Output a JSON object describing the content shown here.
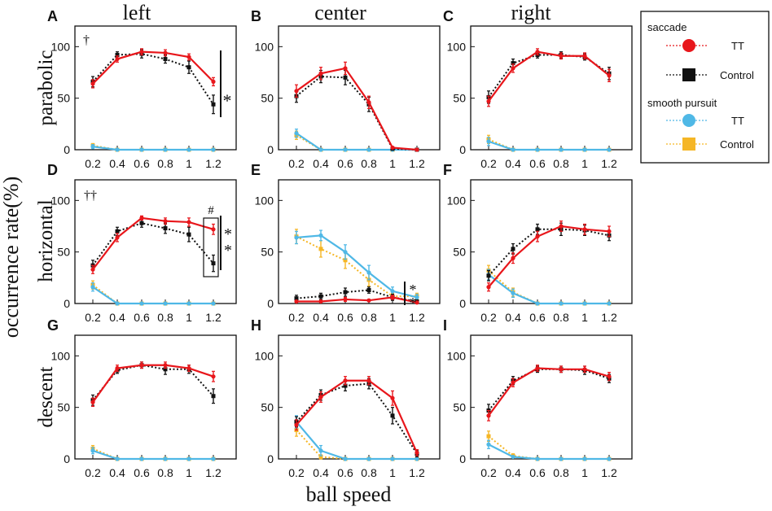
{
  "figure": {
    "ylabel": "occurrence rate(%)",
    "xlabel": "ball speed",
    "col_titles": [
      "left",
      "center",
      "right"
    ],
    "row_titles": [
      "parabolic",
      "horizontal",
      "descent"
    ]
  },
  "legend": {
    "saccade_title": "saccade",
    "smooth_title": "smooth pursuit",
    "entries": [
      {
        "group": "saccade",
        "label": "TT",
        "color": "#e8161b",
        "marker": "circle"
      },
      {
        "group": "saccade",
        "label": "Control",
        "color": "#111111",
        "marker": "square"
      },
      {
        "group": "smooth",
        "label": "TT",
        "color": "#4fb8e6",
        "marker": "circle"
      },
      {
        "group": "smooth",
        "label": "Control",
        "color": "#f5b625",
        "marker": "square"
      }
    ]
  },
  "chart_data": [
    {
      "panel": "A",
      "type": "line",
      "title": "left",
      "ylabel": "parabolic",
      "x": [
        0.2,
        0.4,
        0.6,
        0.8,
        1,
        1.2
      ],
      "xticks": [
        "0.2",
        "0.4",
        "0.6",
        "0.8",
        "1",
        "1.2"
      ],
      "ylim": [
        0,
        120
      ],
      "yticks": [
        0,
        50,
        100
      ],
      "series": [
        {
          "name": "saccade TT",
          "values": [
            64,
            88,
            95,
            94,
            90,
            66
          ],
          "err": [
            4,
            3,
            3,
            3,
            3,
            4
          ]
        },
        {
          "name": "saccade Control",
          "values": [
            66,
            92,
            93,
            88,
            80,
            44
          ],
          "err": [
            5,
            3,
            4,
            4,
            6,
            9
          ]
        },
        {
          "name": "smooth pursuit TT",
          "values": [
            3,
            0,
            0,
            0,
            0,
            0
          ],
          "err": [
            2,
            0,
            0,
            0,
            0,
            0
          ]
        },
        {
          "name": "smooth pursuit Control",
          "values": [
            4,
            0,
            0,
            0,
            0,
            0
          ],
          "err": [
            2,
            0,
            0,
            0,
            0,
            0
          ]
        }
      ],
      "annotations": [
        "†",
        "*"
      ]
    },
    {
      "panel": "B",
      "type": "line",
      "title": "center",
      "x": [
        0.2,
        0.4,
        0.6,
        0.8,
        1,
        1.2
      ],
      "xticks": [
        "0.2",
        "0.4",
        "0.6",
        "0.8",
        "1",
        "1.2"
      ],
      "ylim": [
        0,
        120
      ],
      "yticks": [
        0,
        50,
        100
      ],
      "series": [
        {
          "name": "saccade TT",
          "values": [
            57,
            74,
            79,
            46,
            2,
            0
          ],
          "err": [
            6,
            6,
            6,
            6,
            1,
            0
          ]
        },
        {
          "name": "saccade Control",
          "values": [
            52,
            71,
            70,
            44,
            1,
            0
          ],
          "err": [
            6,
            6,
            7,
            7,
            1,
            0
          ]
        },
        {
          "name": "smooth pursuit TT",
          "values": [
            16,
            0,
            0,
            0,
            0,
            0
          ],
          "err": [
            4,
            0,
            0,
            0,
            0,
            0
          ]
        },
        {
          "name": "smooth pursuit Control",
          "values": [
            14,
            0,
            0,
            0,
            0,
            0
          ],
          "err": [
            4,
            0,
            0,
            0,
            0,
            0
          ]
        }
      ],
      "annotations": []
    },
    {
      "panel": "C",
      "type": "line",
      "title": "right",
      "x": [
        0.2,
        0.4,
        0.6,
        0.8,
        1,
        1.2
      ],
      "xticks": [
        "0.2",
        "0.4",
        "0.6",
        "0.8",
        "1",
        "1.2"
      ],
      "ylim": [
        0,
        120
      ],
      "yticks": [
        0,
        50,
        100
      ],
      "series": [
        {
          "name": "saccade TT",
          "values": [
            47,
            79,
            95,
            91,
            91,
            72
          ],
          "err": [
            5,
            4,
            3,
            3,
            3,
            6
          ]
        },
        {
          "name": "saccade Control",
          "values": [
            51,
            84,
            92,
            92,
            90,
            74
          ],
          "err": [
            6,
            4,
            3,
            3,
            3,
            6
          ]
        },
        {
          "name": "smooth pursuit TT",
          "values": [
            8,
            0,
            0,
            0,
            0,
            0
          ],
          "err": [
            4,
            0,
            0,
            0,
            0,
            0
          ]
        },
        {
          "name": "smooth pursuit Control",
          "values": [
            10,
            0,
            0,
            0,
            0,
            0
          ],
          "err": [
            4,
            0,
            0,
            0,
            0,
            0
          ]
        }
      ],
      "annotations": []
    },
    {
      "panel": "D",
      "type": "line",
      "ylabel": "horizontal",
      "x": [
        0.2,
        0.4,
        0.6,
        0.8,
        1,
        1.2
      ],
      "xticks": [
        "0.2",
        "0.4",
        "0.6",
        "0.8",
        "1",
        "1.2"
      ],
      "ylim": [
        0,
        120
      ],
      "yticks": [
        0,
        50,
        100
      ],
      "series": [
        {
          "name": "saccade TT",
          "values": [
            33,
            64,
            83,
            80,
            79,
            72
          ],
          "err": [
            4,
            4,
            2,
            3,
            4,
            5
          ]
        },
        {
          "name": "saccade Control",
          "values": [
            37,
            70,
            78,
            73,
            67,
            39
          ],
          "err": [
            5,
            4,
            4,
            5,
            7,
            8
          ]
        },
        {
          "name": "smooth pursuit TT",
          "values": [
            16,
            0,
            0,
            0,
            0,
            0
          ],
          "err": [
            4,
            0,
            0,
            0,
            0,
            0
          ]
        },
        {
          "name": "smooth pursuit Control",
          "values": [
            18,
            0,
            0,
            0,
            0,
            0
          ],
          "err": [
            4,
            0,
            0,
            0,
            0,
            0
          ]
        }
      ],
      "annotations": [
        "††",
        "#",
        "*",
        "*"
      ]
    },
    {
      "panel": "E",
      "type": "line",
      "x": [
        0.2,
        0.4,
        0.6,
        0.8,
        1,
        1.2
      ],
      "xticks": [
        "0.2",
        "0.4",
        "0.6",
        "0.8",
        "1",
        "1.2"
      ],
      "ylim": [
        0,
        120
      ],
      "yticks": [
        0,
        50,
        100
      ],
      "series": [
        {
          "name": "saccade TT",
          "values": [
            2,
            2,
            4,
            3,
            6,
            1
          ],
          "err": [
            1,
            1,
            2,
            1,
            2,
            1
          ]
        },
        {
          "name": "saccade Control",
          "values": [
            5,
            7,
            11,
            13,
            6,
            2
          ],
          "err": [
            3,
            3,
            4,
            3,
            3,
            1
          ]
        },
        {
          "name": "smooth pursuit TT",
          "values": [
            64,
            66,
            50,
            30,
            12,
            6
          ],
          "err": [
            6,
            5,
            7,
            7,
            4,
            3
          ]
        },
        {
          "name": "smooth pursuit Control",
          "values": [
            65,
            53,
            42,
            23,
            7,
            7
          ],
          "err": [
            7,
            8,
            8,
            6,
            3,
            3
          ]
        }
      ],
      "annotations": [
        "*",
        "*"
      ]
    },
    {
      "panel": "F",
      "type": "line",
      "x": [
        0.2,
        0.4,
        0.6,
        0.8,
        1,
        1.2
      ],
      "xticks": [
        "0.2",
        "0.4",
        "0.6",
        "0.8",
        "1",
        "1.2"
      ],
      "ylim": [
        0,
        120
      ],
      "yticks": [
        0,
        50,
        100
      ],
      "series": [
        {
          "name": "saccade TT",
          "values": [
            16,
            44,
            65,
            75,
            72,
            70
          ],
          "err": [
            4,
            5,
            5,
            5,
            5,
            5
          ]
        },
        {
          "name": "saccade Control",
          "values": [
            27,
            53,
            72,
            72,
            71,
            66
          ],
          "err": [
            5,
            5,
            5,
            6,
            5,
            5
          ]
        },
        {
          "name": "smooth pursuit TT",
          "values": [
            28,
            10,
            0,
            0,
            0,
            0
          ],
          "err": [
            5,
            4,
            0,
            0,
            0,
            0
          ]
        },
        {
          "name": "smooth pursuit Control",
          "values": [
            32,
            11,
            0,
            0,
            0,
            0
          ],
          "err": [
            5,
            4,
            0,
            0,
            0,
            0
          ]
        }
      ],
      "annotations": []
    },
    {
      "panel": "G",
      "type": "line",
      "ylabel": "descent",
      "x": [
        0.2,
        0.4,
        0.6,
        0.8,
        1,
        1.2
      ],
      "xticks": [
        "0.2",
        "0.4",
        "0.6",
        "0.8",
        "1",
        "1.2"
      ],
      "ylim": [
        0,
        120
      ],
      "yticks": [
        0,
        50,
        100
      ],
      "series": [
        {
          "name": "saccade TT",
          "values": [
            55,
            88,
            91,
            91,
            88,
            80
          ],
          "err": [
            4,
            3,
            3,
            3,
            3,
            5
          ]
        },
        {
          "name": "saccade Control",
          "values": [
            57,
            86,
            91,
            87,
            87,
            61
          ],
          "err": [
            5,
            3,
            3,
            5,
            4,
            7
          ]
        },
        {
          "name": "smooth pursuit TT",
          "values": [
            8,
            0,
            0,
            0,
            0,
            0
          ],
          "err": [
            3,
            0,
            0,
            0,
            0,
            0
          ]
        },
        {
          "name": "smooth pursuit Control",
          "values": [
            10,
            0,
            0,
            0,
            0,
            0
          ],
          "err": [
            3,
            0,
            0,
            0,
            0,
            0
          ]
        }
      ],
      "annotations": []
    },
    {
      "panel": "H",
      "type": "line",
      "x": [
        0.2,
        0.4,
        0.6,
        0.8,
        1,
        1.2
      ],
      "xticks": [
        "0.2",
        "0.4",
        "0.6",
        "0.8",
        "1",
        "1.2"
      ],
      "ylim": [
        0,
        120
      ],
      "yticks": [
        0,
        50,
        100
      ],
      "series": [
        {
          "name": "saccade TT",
          "values": [
            33,
            60,
            76,
            76,
            59,
            6
          ],
          "err": [
            5,
            5,
            4,
            4,
            7,
            3
          ]
        },
        {
          "name": "saccade Control",
          "values": [
            36,
            62,
            71,
            73,
            42,
            5
          ],
          "err": [
            5,
            5,
            5,
            5,
            8,
            3
          ]
        },
        {
          "name": "smooth pursuit TT",
          "values": [
            36,
            8,
            0,
            0,
            0,
            0
          ],
          "err": [
            6,
            5,
            0,
            0,
            0,
            0
          ]
        },
        {
          "name": "smooth pursuit Control",
          "values": [
            28,
            2,
            0,
            0,
            0,
            0
          ],
          "err": [
            6,
            2,
            0,
            0,
            0,
            0
          ]
        }
      ],
      "annotations": []
    },
    {
      "panel": "I",
      "type": "line",
      "x": [
        0.2,
        0.4,
        0.6,
        0.8,
        1,
        1.2
      ],
      "xticks": [
        "0.2",
        "0.4",
        "0.6",
        "0.8",
        "1",
        "1.2"
      ],
      "ylim": [
        0,
        120
      ],
      "yticks": [
        0,
        50,
        100
      ],
      "series": [
        {
          "name": "saccade TT",
          "values": [
            42,
            74,
            88,
            87,
            87,
            80
          ],
          "err": [
            5,
            4,
            3,
            3,
            3,
            4
          ]
        },
        {
          "name": "saccade Control",
          "values": [
            47,
            76,
            87,
            87,
            86,
            78
          ],
          "err": [
            6,
            4,
            3,
            3,
            4,
            4
          ]
        },
        {
          "name": "smooth pursuit TT",
          "values": [
            14,
            2,
            0,
            0,
            0,
            0
          ],
          "err": [
            4,
            1,
            0,
            0,
            0,
            0
          ]
        },
        {
          "name": "smooth pursuit Control",
          "values": [
            22,
            3,
            0,
            0,
            0,
            0
          ],
          "err": [
            5,
            2,
            0,
            0,
            0,
            0
          ]
        }
      ],
      "annotations": []
    }
  ]
}
